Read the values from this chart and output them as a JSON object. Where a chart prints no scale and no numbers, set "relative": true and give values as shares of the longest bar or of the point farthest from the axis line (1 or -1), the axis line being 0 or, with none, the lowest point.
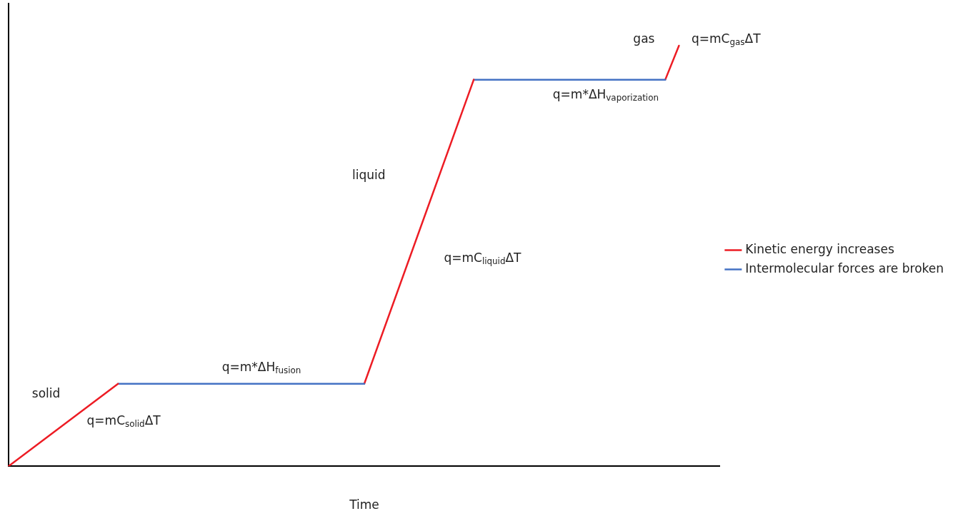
{
  "chart_data": {
    "type": "line",
    "relative": true,
    "xlabel": "Time",
    "legend": "right",
    "grid": false,
    "marker": "none",
    "line_style": "solid",
    "categories": [
      null,
      null,
      null,
      null,
      null,
      null,
      null,
      null,
      null,
      null,
      null,
      null,
      null,
      null,
      null,
      null,
      null,
      null,
      null,
      null,
      null,
      null,
      null,
      null,
      null,
      null,
      null,
      null,
      null,
      null,
      null,
      null,
      null,
      null,
      null,
      null,
      null,
      null,
      null,
      null,
      null,
      null,
      null,
      null,
      null,
      null,
      null,
      null,
      null,
      null,
      null,
      null,
      null
    ],
    "series": [
      {
        "name": "Kinetic energy increases",
        "color": "#ed1c24",
        "values": [
          0,
          null,
          null,
          null,
          null,
          null,
          null,
          null,
          0.196,
          null,
          null,
          null,
          null,
          null,
          null,
          null,
          null,
          null,
          null,
          null,
          null,
          null,
          null,
          null,
          null,
          null,
          null,
          null,
          null,
          null,
          null,
          null,
          null,
          null,
          null,
          null,
          null,
          null,
          null,
          null,
          null,
          null,
          null,
          null,
          null,
          null,
          null,
          null,
          null,
          null,
          null,
          null,
          null
        ]
      },
      {
        "name": "Intermolecular forces are broken",
        "color": "#4472c4",
        "values": [
          null,
          null,
          null,
          null,
          null,
          null,
          null,
          null,
          0.196,
          null,
          null,
          null,
          null,
          null,
          null,
          null,
          null,
          null,
          null,
          null,
          null,
          null,
          null,
          null,
          null,
          null,
          0.196,
          null,
          null,
          null,
          null,
          null,
          null,
          null,
          null,
          null,
          null,
          null,
          null,
          null,
          null,
          null,
          null,
          null,
          null,
          null,
          null,
          null,
          null,
          null,
          null,
          null,
          null
        ]
      },
      {
        "color": "#ed1c24",
        "values": [
          null,
          null,
          null,
          null,
          null,
          null,
          null,
          null,
          null,
          null,
          null,
          null,
          null,
          null,
          null,
          null,
          null,
          null,
          null,
          null,
          null,
          null,
          null,
          null,
          null,
          null,
          0.196,
          null,
          null,
          null,
          null,
          null,
          null,
          null,
          0.919,
          null,
          null,
          null,
          null,
          null,
          null,
          null,
          null,
          null,
          null,
          null,
          null,
          null,
          null,
          null,
          null,
          null,
          null
        ]
      },
      {
        "color": "#4472c4",
        "values": [
          null,
          null,
          null,
          null,
          null,
          null,
          null,
          null,
          null,
          null,
          null,
          null,
          null,
          null,
          null,
          null,
          null,
          null,
          null,
          null,
          null,
          null,
          null,
          null,
          null,
          null,
          null,
          null,
          null,
          null,
          null,
          null,
          null,
          null,
          0.919,
          null,
          null,
          null,
          null,
          null,
          null,
          null,
          null,
          null,
          null,
          null,
          null,
          null,
          0.919,
          null,
          null,
          null,
          null
        ]
      },
      {
        "color": "#ed1c24",
        "values": [
          null,
          null,
          null,
          null,
          null,
          null,
          null,
          null,
          null,
          null,
          null,
          null,
          null,
          null,
          null,
          null,
          null,
          null,
          null,
          null,
          null,
          null,
          null,
          null,
          null,
          null,
          null,
          null,
          null,
          null,
          null,
          null,
          null,
          null,
          null,
          null,
          null,
          null,
          null,
          null,
          null,
          null,
          null,
          null,
          null,
          null,
          null,
          null,
          0.919,
          1,
          null,
          null,
          null
        ]
      }
    ],
    "annotations": [
      "solid",
      "q=mC$_{solid}$ΔT",
      "q=m*ΔH$_{fusion}$",
      "liquid",
      "q=mC$_{liquid}$ΔT",
      "q=m*ΔH$_{vaporization}$",
      "gas",
      "q=mC$_{gas}$ΔT"
    ]
  }
}
